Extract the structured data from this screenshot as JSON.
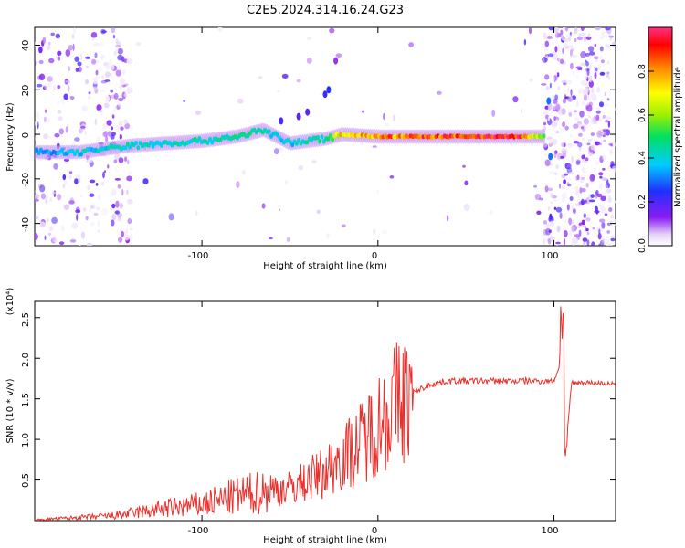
{
  "title": "C2E5.2024.314.16.24.G23",
  "chart_data": [
    {
      "type": "heatmap",
      "xlabel": "Height of straight line (km)",
      "ylabel": "Frequency (Hz)",
      "xlim": [
        -195,
        135
      ],
      "ylim": [
        -50,
        48
      ],
      "x_ticks": [
        "-100",
        "0",
        "100"
      ],
      "y_ticks": [
        "40",
        "20",
        "0",
        "-20",
        "-40"
      ],
      "colorbar": {
        "label": "Normalized spectral amplitude",
        "range": [
          0,
          1
        ],
        "ticks": [
          "0.0",
          "0.2",
          "0.4",
          "0.6",
          "0.8"
        ]
      },
      "ridge": [
        {
          "x": -195,
          "y": -8,
          "amp": 0.35
        },
        {
          "x": -170,
          "y": -8,
          "amp": 0.4
        },
        {
          "x": -140,
          "y": -5,
          "amp": 0.45
        },
        {
          "x": -100,
          "y": -3,
          "amp": 0.45
        },
        {
          "x": -80,
          "y": -1,
          "amp": 0.5
        },
        {
          "x": -65,
          "y": 2,
          "amp": 0.45
        },
        {
          "x": -50,
          "y": -4,
          "amp": 0.4
        },
        {
          "x": -30,
          "y": -2,
          "amp": 0.5
        },
        {
          "x": -20,
          "y": 0,
          "amp": 0.8
        },
        {
          "x": 0,
          "y": -1,
          "amp": 0.85
        },
        {
          "x": 40,
          "y": -1,
          "amp": 0.95
        },
        {
          "x": 80,
          "y": -1,
          "amp": 1.0
        },
        {
          "x": 95,
          "y": -1,
          "amp": 0.5
        }
      ]
    },
    {
      "type": "line",
      "xlabel": "Height of straight line (km)",
      "ylabel": "SNR (10 * v/v)",
      "y_multiplier": "(x10⁴)",
      "xlim": [
        -195,
        135
      ],
      "ylim": [
        0,
        27000
      ],
      "x_ticks": [
        "-100",
        "0",
        "100"
      ],
      "y_ticks": [
        "0.5",
        "1.0",
        "1.5",
        "2.0",
        "2.5"
      ],
      "series": [
        {
          "color": "#e8302c",
          "x": [
            -195,
            -150,
            -120,
            -100,
            -80,
            -60,
            -50,
            -40,
            -30,
            -20,
            -15,
            -10,
            0,
            10,
            20,
            30,
            40,
            60,
            80,
            95,
            100,
            103,
            105,
            106,
            110,
            120,
            135
          ],
          "y": [
            100,
            600,
            1500,
            2000,
            3000,
            3800,
            4000,
            5000,
            6000,
            8000,
            8500,
            9500,
            12000,
            14500,
            15800,
            16800,
            17200,
            17200,
            17200,
            17200,
            17200,
            19000,
            27000,
            7000,
            17000,
            17000,
            16800
          ]
        }
      ]
    }
  ]
}
